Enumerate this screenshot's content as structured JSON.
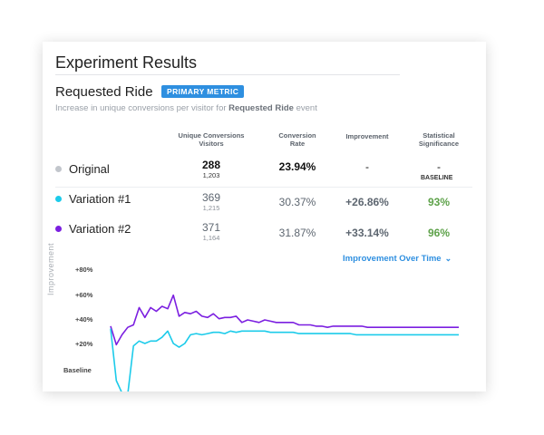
{
  "card": {
    "title": "Experiment Results"
  },
  "metric": {
    "name": "Requested Ride",
    "badge": "PRIMARY METRIC",
    "desc_prefix": "Increase in unique conversions per visitor for ",
    "desc_event": "Requested Ride",
    "desc_suffix": " event"
  },
  "table": {
    "headers": {
      "conversions_line1": "Unique Conversions",
      "conversions_line2": "Visitors",
      "rate_line1": "Conversion",
      "rate_line2": "Rate",
      "improvement": "Improvement",
      "significance_line1": "Statistical",
      "significance_line2": "Significance"
    },
    "rows": [
      {
        "name": "Original",
        "conversions": "288",
        "visitors": "1,203",
        "rate": "23.94%",
        "improvement": "-",
        "significance": "-",
        "significance_note": "BASELINE",
        "dot_color": "#c2c6cc"
      },
      {
        "name": "Variation #1",
        "conversions": "369",
        "visitors": "1,215",
        "rate": "30.37%",
        "improvement": "+26.86%",
        "significance": "93%",
        "dot_color": "#1ccbea"
      },
      {
        "name": "Variation #2",
        "conversions": "371",
        "visitors": "1,164",
        "rate": "31.87%",
        "improvement": "+33.14%",
        "significance": "96%",
        "dot_color": "#7b1fe0"
      }
    ]
  },
  "chart": {
    "dropdown_label": "Improvement Over Time",
    "y_axis_title": "Improvement",
    "y_ticks": [
      "+80%",
      "+60%",
      "+40%",
      "+20%"
    ],
    "baseline_label": "Baseline"
  },
  "chart_data": {
    "type": "line",
    "ylabel": "Improvement",
    "ylim": [
      -30,
      80
    ],
    "y_ticks": [
      20,
      40,
      60,
      80
    ],
    "grid": false,
    "legend": "none",
    "series": [
      {
        "name": "Variation #2",
        "color": "#7b1fe0",
        "values": [
          34,
          19,
          27,
          33,
          35,
          49,
          41,
          49,
          46,
          50,
          48,
          59,
          42,
          45,
          44,
          46,
          42,
          41,
          44,
          40,
          41,
          41,
          42,
          37,
          39,
          38,
          37,
          39,
          38,
          37,
          37,
          37,
          37,
          35,
          35,
          35,
          34,
          34,
          33,
          34,
          34,
          34,
          34,
          34,
          34,
          33,
          33,
          33,
          33,
          33,
          33,
          33,
          33,
          33,
          33,
          33,
          33,
          33,
          33,
          33,
          33,
          33
        ]
      },
      {
        "name": "Variation #1",
        "color": "#1ccbea",
        "values": [
          32,
          -10,
          -20,
          -21,
          18,
          22,
          20,
          22,
          22,
          25,
          30,
          20,
          17,
          20,
          27,
          28,
          27,
          28,
          29,
          29,
          28,
          30,
          29,
          30,
          30,
          30,
          30,
          30,
          29,
          29,
          29,
          29,
          29,
          28,
          28,
          28,
          28,
          28,
          28,
          28,
          28,
          28,
          28,
          27,
          27,
          27,
          27,
          27,
          27,
          27,
          27,
          27,
          27,
          27,
          27,
          27,
          27,
          27,
          27,
          27,
          27,
          27
        ]
      }
    ]
  }
}
